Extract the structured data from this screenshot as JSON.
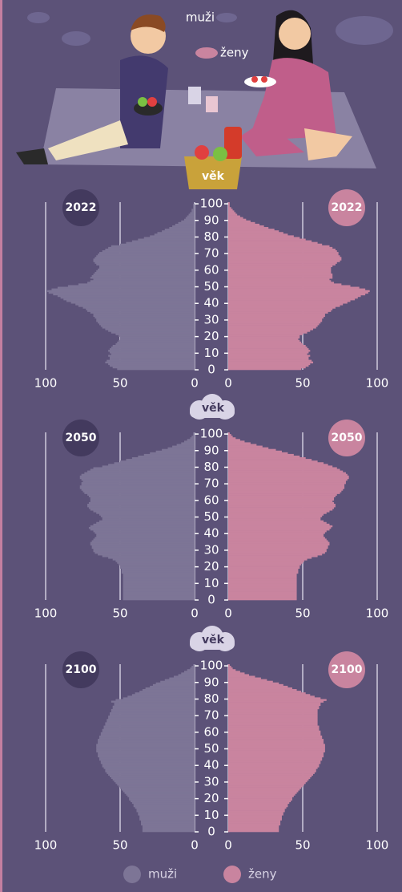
{
  "illustration": {
    "men": "muži",
    "women": "ženy"
  },
  "legend": [
    {
      "name": "muži",
      "color": "#7d7596"
    },
    {
      "name": "ženy",
      "color": "#c9849f"
    }
  ],
  "chart_data": [
    {
      "type": "pyramid",
      "title": "2022",
      "age_label": "věk",
      "ages": [
        0,
        1,
        2,
        3,
        4,
        5,
        6,
        7,
        8,
        9,
        10,
        11,
        12,
        13,
        14,
        15,
        16,
        17,
        18,
        19,
        20,
        21,
        22,
        23,
        24,
        25,
        26,
        27,
        28,
        29,
        30,
        31,
        32,
        33,
        34,
        35,
        36,
        37,
        38,
        39,
        40,
        41,
        42,
        43,
        44,
        45,
        46,
        47,
        48,
        49,
        50,
        51,
        52,
        53,
        54,
        55,
        56,
        57,
        58,
        59,
        60,
        61,
        62,
        63,
        64,
        65,
        66,
        67,
        68,
        69,
        70,
        71,
        72,
        73,
        74,
        75,
        76,
        77,
        78,
        79,
        80,
        81,
        82,
        83,
        84,
        85,
        86,
        87,
        88,
        89,
        90,
        91,
        92,
        93,
        94,
        95,
        96,
        97,
        98,
        99,
        100
      ],
      "series": [
        {
          "color": "#7d7596",
          "values": [
            52,
            55,
            57,
            58,
            60,
            59,
            57,
            57,
            58,
            56,
            57,
            58,
            57,
            56,
            55,
            53,
            52,
            51,
            50,
            50,
            51,
            53,
            56,
            58,
            60,
            62,
            63,
            64,
            65,
            66,
            66,
            67,
            68,
            68,
            70,
            72,
            73,
            75,
            78,
            80,
            83,
            86,
            88,
            90,
            92,
            95,
            98,
            99,
            96,
            92,
            85,
            78,
            72,
            70,
            68,
            70,
            69,
            68,
            67,
            66,
            65,
            64,
            64,
            66,
            67,
            68,
            68,
            67,
            66,
            65,
            64,
            62,
            60,
            58,
            56,
            50,
            46,
            42,
            38,
            34,
            30,
            27,
            25,
            22,
            20,
            17,
            15,
            13,
            11,
            9,
            7,
            6,
            5,
            4,
            3,
            2,
            2,
            1,
            1,
            1,
            0
          ]
        },
        {
          "color": "#c9849f",
          "values": [
            49,
            52,
            54,
            55,
            57,
            56,
            54,
            54,
            55,
            53,
            54,
            55,
            54,
            53,
            52,
            50,
            49,
            48,
            47,
            48,
            48,
            50,
            53,
            55,
            57,
            59,
            60,
            61,
            62,
            63,
            63,
            64,
            65,
            65,
            67,
            69,
            70,
            72,
            75,
            77,
            80,
            82,
            85,
            87,
            89,
            92,
            94,
            95,
            92,
            88,
            82,
            76,
            71,
            69,
            68,
            70,
            70,
            70,
            69,
            69,
            69,
            69,
            70,
            72,
            73,
            75,
            76,
            76,
            75,
            74,
            74,
            73,
            72,
            70,
            68,
            63,
            60,
            56,
            52,
            48,
            44,
            40,
            37,
            34,
            31,
            27,
            24,
            21,
            18,
            15,
            12,
            10,
            8,
            6,
            5,
            4,
            3,
            2,
            1,
            1,
            1
          ]
        }
      ],
      "xlim": [
        0,
        100
      ],
      "xticks": [
        0,
        50,
        100
      ],
      "ylim": [
        0,
        101
      ],
      "yticks": [
        0,
        10,
        20,
        30,
        40,
        50,
        60,
        70,
        80,
        90,
        100
      ],
      "grid": true
    },
    {
      "type": "pyramid",
      "title": "2050",
      "age_label": "věk",
      "ages": [
        0,
        1,
        2,
        3,
        4,
        5,
        6,
        7,
        8,
        9,
        10,
        11,
        12,
        13,
        14,
        15,
        16,
        17,
        18,
        19,
        20,
        21,
        22,
        23,
        24,
        25,
        26,
        27,
        28,
        29,
        30,
        31,
        32,
        33,
        34,
        35,
        36,
        37,
        38,
        39,
        40,
        41,
        42,
        43,
        44,
        45,
        46,
        47,
        48,
        49,
        50,
        51,
        52,
        53,
        54,
        55,
        56,
        57,
        58,
        59,
        60,
        61,
        62,
        63,
        64,
        65,
        66,
        67,
        68,
        69,
        70,
        71,
        72,
        73,
        74,
        75,
        76,
        77,
        78,
        79,
        80,
        81,
        82,
        83,
        84,
        85,
        86,
        87,
        88,
        89,
        90,
        91,
        92,
        93,
        94,
        95,
        96,
        97,
        98,
        99,
        100
      ],
      "series": [
        {
          "color": "#7d7596",
          "values": [
            48,
            48,
            48,
            48,
            48,
            48,
            48,
            48,
            48,
            48,
            48,
            48,
            48,
            48,
            48,
            48,
            49,
            49,
            49,
            50,
            50,
            51,
            52,
            53,
            55,
            58,
            62,
            65,
            67,
            68,
            68,
            69,
            69,
            70,
            70,
            69,
            68,
            67,
            66,
            66,
            67,
            68,
            70,
            71,
            70,
            68,
            66,
            64,
            62,
            62,
            63,
            64,
            66,
            68,
            70,
            71,
            72,
            72,
            71,
            70,
            70,
            70,
            71,
            72,
            74,
            75,
            76,
            77,
            77,
            76,
            76,
            75,
            76,
            77,
            77,
            76,
            74,
            72,
            70,
            68,
            62,
            58,
            54,
            50,
            46,
            42,
            38,
            34,
            30,
            26,
            22,
            18,
            15,
            12,
            9,
            7,
            5,
            3,
            2,
            1,
            1
          ]
        },
        {
          "color": "#c9849f",
          "values": [
            46,
            46,
            46,
            46,
            46,
            46,
            46,
            46,
            46,
            46,
            46,
            46,
            46,
            46,
            46,
            46,
            47,
            47,
            47,
            48,
            48,
            49,
            50,
            51,
            53,
            56,
            60,
            63,
            65,
            66,
            66,
            67,
            67,
            68,
            68,
            67,
            66,
            65,
            64,
            64,
            65,
            66,
            68,
            69,
            70,
            68,
            66,
            64,
            62,
            62,
            63,
            64,
            66,
            68,
            70,
            71,
            72,
            72,
            71,
            70,
            71,
            71,
            72,
            73,
            75,
            76,
            77,
            78,
            78,
            78,
            79,
            79,
            80,
            81,
            81,
            80,
            79,
            77,
            75,
            73,
            70,
            67,
            64,
            60,
            56,
            52,
            48,
            44,
            40,
            36,
            32,
            27,
            23,
            19,
            15,
            11,
            8,
            5,
            3,
            2,
            1
          ]
        }
      ],
      "xlim": [
        0,
        100
      ],
      "xticks": [
        0,
        50,
        100
      ],
      "ylim": [
        0,
        101
      ],
      "yticks": [
        0,
        10,
        20,
        30,
        40,
        50,
        60,
        70,
        80,
        90,
        100
      ],
      "grid": true
    },
    {
      "type": "pyramid",
      "title": "2100",
      "age_label": "věk",
      "ages": [
        0,
        1,
        2,
        3,
        4,
        5,
        6,
        7,
        8,
        9,
        10,
        11,
        12,
        13,
        14,
        15,
        16,
        17,
        18,
        19,
        20,
        21,
        22,
        23,
        24,
        25,
        26,
        27,
        28,
        29,
        30,
        31,
        32,
        33,
        34,
        35,
        36,
        37,
        38,
        39,
        40,
        41,
        42,
        43,
        44,
        45,
        46,
        47,
        48,
        49,
        50,
        51,
        52,
        53,
        54,
        55,
        56,
        57,
        58,
        59,
        60,
        61,
        62,
        63,
        64,
        65,
        66,
        67,
        68,
        69,
        70,
        71,
        72,
        73,
        74,
        75,
        76,
        77,
        78,
        79,
        80,
        81,
        82,
        83,
        84,
        85,
        86,
        87,
        88,
        89,
        90,
        91,
        92,
        93,
        94,
        95,
        96,
        97,
        98,
        99,
        100
      ],
      "series": [
        {
          "color": "#7d7596",
          "values": [
            35,
            35,
            35,
            35,
            36,
            36,
            36,
            37,
            37,
            37,
            38,
            38,
            39,
            39,
            40,
            41,
            41,
            42,
            43,
            44,
            44,
            45,
            46,
            47,
            48,
            49,
            50,
            51,
            52,
            53,
            54,
            55,
            56,
            57,
            58,
            59,
            60,
            60,
            61,
            62,
            62,
            63,
            63,
            64,
            64,
            65,
            65,
            65,
            66,
            66,
            66,
            66,
            66,
            65,
            65,
            65,
            64,
            64,
            63,
            63,
            62,
            62,
            61,
            61,
            60,
            60,
            59,
            59,
            58,
            58,
            57,
            57,
            56,
            56,
            55,
            55,
            54,
            54,
            56,
            53,
            48,
            45,
            42,
            40,
            37,
            35,
            33,
            30,
            28,
            26,
            23,
            20,
            17,
            14,
            11,
            9,
            7,
            5,
            3,
            2,
            1
          ]
        },
        {
          "color": "#c9849f",
          "values": [
            34,
            34,
            34,
            34,
            35,
            35,
            35,
            36,
            36,
            36,
            37,
            37,
            38,
            38,
            39,
            40,
            40,
            41,
            42,
            43,
            43,
            44,
            45,
            46,
            47,
            48,
            49,
            50,
            51,
            52,
            53,
            54,
            55,
            56,
            57,
            58,
            59,
            59,
            60,
            61,
            61,
            62,
            62,
            63,
            63,
            64,
            64,
            64,
            65,
            65,
            65,
            65,
            65,
            64,
            64,
            64,
            63,
            63,
            62,
            62,
            62,
            61,
            61,
            61,
            60,
            60,
            60,
            60,
            60,
            60,
            60,
            60,
            60,
            60,
            61,
            61,
            62,
            62,
            64,
            66,
            62,
            58,
            55,
            52,
            49,
            46,
            43,
            40,
            37,
            34,
            30,
            26,
            22,
            18,
            14,
            11,
            8,
            5,
            3,
            2,
            1
          ]
        }
      ],
      "xlim": [
        0,
        100
      ],
      "xticks": [
        0,
        50,
        100
      ],
      "ylim": [
        0,
        101
      ],
      "yticks": [
        0,
        10,
        20,
        30,
        40,
        50,
        60,
        70,
        80,
        90,
        100
      ],
      "grid": true
    }
  ]
}
